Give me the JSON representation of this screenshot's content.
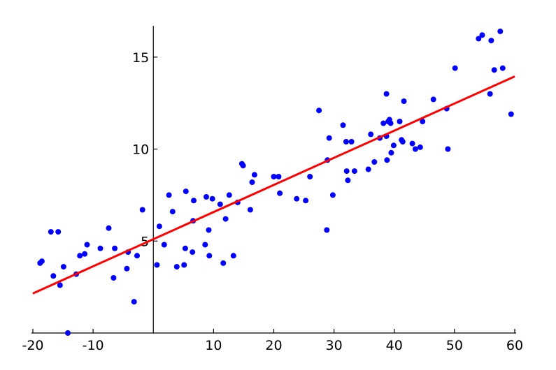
{
  "chart_data": {
    "type": "scatter",
    "title": "",
    "xlabel": "",
    "ylabel": "",
    "xlim": [
      -20,
      60
    ],
    "ylim": [
      0,
      16.7
    ],
    "grid": false,
    "x_ticks": [
      -20,
      -10,
      10,
      20,
      30,
      40,
      50,
      60
    ],
    "x_tick_labels": [
      "-20",
      "-10",
      "10",
      "20",
      "30",
      "40",
      "50",
      "60"
    ],
    "y_ticks": [
      5,
      10,
      15
    ],
    "y_tick_labels": [
      "5",
      "10",
      "15"
    ],
    "point_color": "#0000ff",
    "line_color": "#ff0000",
    "series": [
      {
        "points": [
          [
            -18.8,
            3.8
          ],
          [
            -18.5,
            3.9
          ],
          [
            -17.0,
            5.5
          ],
          [
            -16.6,
            3.1
          ],
          [
            -15.8,
            5.5
          ],
          [
            -15.5,
            2.6
          ],
          [
            -14.9,
            3.6
          ],
          [
            -14.2,
            0.0
          ],
          [
            -12.8,
            3.2
          ],
          [
            -12.2,
            4.2
          ],
          [
            -11.4,
            4.3
          ],
          [
            -11.0,
            4.8
          ],
          [
            -8.8,
            4.6
          ],
          [
            -7.4,
            5.7
          ],
          [
            -6.6,
            3.0
          ],
          [
            -6.4,
            4.6
          ],
          [
            -4.4,
            3.5
          ],
          [
            -4.2,
            4.4
          ],
          [
            -3.2,
            1.7
          ],
          [
            -2.7,
            4.2
          ],
          [
            -1.8,
            6.7
          ],
          [
            0.6,
            3.7
          ],
          [
            1.0,
            5.8
          ],
          [
            1.8,
            4.8
          ],
          [
            2.6,
            7.5
          ],
          [
            3.2,
            6.6
          ],
          [
            3.9,
            3.6
          ],
          [
            5.1,
            3.7
          ],
          [
            5.3,
            4.6
          ],
          [
            5.4,
            7.7
          ],
          [
            6.5,
            4.4
          ],
          [
            6.6,
            6.1
          ],
          [
            6.7,
            7.2
          ],
          [
            8.6,
            4.8
          ],
          [
            8.8,
            7.4
          ],
          [
            9.2,
            5.6
          ],
          [
            9.3,
            4.2
          ],
          [
            9.8,
            7.3
          ],
          [
            11.1,
            7.0
          ],
          [
            11.6,
            3.8
          ],
          [
            12.0,
            6.2
          ],
          [
            12.6,
            7.5
          ],
          [
            13.3,
            4.2
          ],
          [
            14.0,
            7.1
          ],
          [
            14.7,
            9.2
          ],
          [
            14.9,
            9.1
          ],
          [
            16.1,
            6.7
          ],
          [
            16.4,
            8.2
          ],
          [
            16.8,
            8.6
          ],
          [
            20.0,
            8.5
          ],
          [
            20.8,
            8.5
          ],
          [
            21.0,
            7.6
          ],
          [
            23.8,
            7.3
          ],
          [
            25.3,
            7.2
          ],
          [
            26.0,
            8.5
          ],
          [
            27.5,
            12.1
          ],
          [
            28.8,
            5.6
          ],
          [
            28.9,
            9.4
          ],
          [
            29.2,
            10.6
          ],
          [
            29.8,
            7.5
          ],
          [
            31.5,
            11.3
          ],
          [
            32.0,
            10.4
          ],
          [
            32.1,
            8.8
          ],
          [
            32.3,
            8.3
          ],
          [
            32.9,
            10.4
          ],
          [
            33.4,
            8.8
          ],
          [
            35.7,
            8.9
          ],
          [
            36.1,
            10.8
          ],
          [
            36.7,
            9.3
          ],
          [
            37.6,
            10.6
          ],
          [
            38.2,
            11.4
          ],
          [
            38.7,
            13.0
          ],
          [
            38.7,
            10.7
          ],
          [
            38.8,
            9.4
          ],
          [
            39.0,
            11.5
          ],
          [
            39.2,
            11.6
          ],
          [
            39.4,
            11.4
          ],
          [
            39.5,
            9.8
          ],
          [
            39.9,
            10.2
          ],
          [
            40.9,
            11.5
          ],
          [
            41.2,
            10.5
          ],
          [
            41.4,
            10.4
          ],
          [
            41.6,
            12.6
          ],
          [
            43.0,
            10.3
          ],
          [
            43.5,
            10.0
          ],
          [
            44.3,
            10.1
          ],
          [
            44.7,
            11.5
          ],
          [
            46.5,
            12.7
          ],
          [
            48.7,
            12.2
          ],
          [
            48.9,
            10.0
          ],
          [
            50.1,
            14.4
          ],
          [
            54.0,
            16.0
          ],
          [
            54.6,
            16.2
          ],
          [
            55.9,
            13.0
          ],
          [
            56.1,
            15.9
          ],
          [
            56.6,
            14.3
          ],
          [
            57.6,
            16.4
          ],
          [
            58.0,
            14.4
          ],
          [
            59.4,
            11.9
          ]
        ]
      }
    ],
    "fit_line": {
      "x": [
        -20,
        60
      ],
      "y": [
        2.15,
        13.95
      ]
    }
  }
}
